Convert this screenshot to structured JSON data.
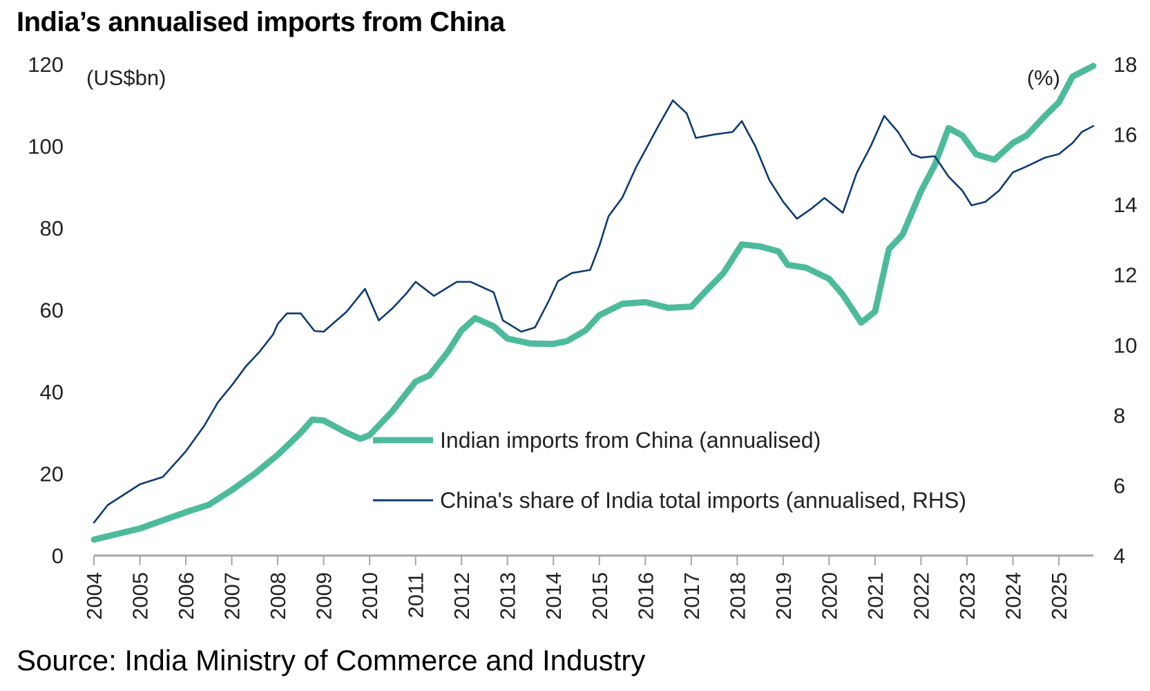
{
  "title": "India’s annualised imports from China",
  "source": "Source: India Ministry of Commerce and Industry",
  "chart_data": {
    "type": "line",
    "title": "India’s annualised imports from China",
    "left_unit": "(US$bn)",
    "right_unit": "(%)",
    "ylim_left": [
      0,
      120
    ],
    "yticks_left": [
      0,
      20,
      40,
      60,
      80,
      100,
      120
    ],
    "ylim_right": [
      4,
      18
    ],
    "yticks_right": [
      4,
      6,
      8,
      10,
      12,
      14,
      16,
      18
    ],
    "xlim": [
      2004,
      2025.75
    ],
    "xticks": [
      "2004",
      "2005",
      "2006",
      "2007",
      "2008",
      "2009",
      "2010",
      "2011",
      "2012",
      "2013",
      "2014",
      "2015",
      "2016",
      "2017",
      "2018",
      "2019",
      "2020",
      "2021",
      "2022",
      "2023",
      "2024",
      "2025"
    ],
    "grid": false,
    "legend_position": "center-right",
    "series": [
      {
        "name": "Indian imports from China (annualised)",
        "axis": "left",
        "color": "#4dbb9b",
        "points": [
          [
            2004.0,
            3.9
          ],
          [
            2005.0,
            6.6
          ],
          [
            2006.0,
            10.6
          ],
          [
            2006.5,
            12.4
          ],
          [
            2007.0,
            16
          ],
          [
            2007.5,
            20
          ],
          [
            2008.0,
            24.6
          ],
          [
            2008.5,
            30
          ],
          [
            2008.75,
            33.2
          ],
          [
            2009.0,
            33
          ],
          [
            2009.5,
            30
          ],
          [
            2009.8,
            28.5
          ],
          [
            2010.0,
            29.4
          ],
          [
            2010.5,
            35.3
          ],
          [
            2011.0,
            42.5
          ],
          [
            2011.3,
            44
          ],
          [
            2011.7,
            49.7
          ],
          [
            2012.0,
            55
          ],
          [
            2012.3,
            58
          ],
          [
            2012.7,
            56
          ],
          [
            2013.0,
            53
          ],
          [
            2013.5,
            51.8
          ],
          [
            2014.0,
            51.7
          ],
          [
            2014.3,
            52.4
          ],
          [
            2014.7,
            55
          ],
          [
            2015.0,
            58.7
          ],
          [
            2015.5,
            61.5
          ],
          [
            2016.0,
            61.9
          ],
          [
            2016.5,
            60.5
          ],
          [
            2017.0,
            60.8
          ],
          [
            2017.3,
            64.4
          ],
          [
            2017.7,
            69
          ],
          [
            2018.1,
            76
          ],
          [
            2018.5,
            75.5
          ],
          [
            2018.9,
            74.3
          ],
          [
            2019.1,
            71
          ],
          [
            2019.5,
            70.3
          ],
          [
            2020.0,
            67.6
          ],
          [
            2020.3,
            63.7
          ],
          [
            2020.7,
            56.9
          ],
          [
            2021.0,
            59.6
          ],
          [
            2021.3,
            74.8
          ],
          [
            2021.6,
            78.4
          ],
          [
            2022.0,
            89
          ],
          [
            2022.3,
            95.4
          ],
          [
            2022.6,
            104.4
          ],
          [
            2022.9,
            102.6
          ],
          [
            2023.2,
            98
          ],
          [
            2023.6,
            96.7
          ],
          [
            2024.0,
            100.8
          ],
          [
            2024.3,
            102.6
          ],
          [
            2024.7,
            107.4
          ],
          [
            2025.0,
            110.7
          ],
          [
            2025.3,
            117
          ],
          [
            2025.75,
            119.6
          ]
        ]
      },
      {
        "name": "China's share of India total imports (annualised, RHS)",
        "axis": "right",
        "color": "#0d3a73",
        "points": [
          [
            2004.0,
            4.94
          ],
          [
            2004.3,
            5.44
          ],
          [
            2005.0,
            6.03
          ],
          [
            2005.5,
            6.24
          ],
          [
            2006.0,
            6.97
          ],
          [
            2006.4,
            7.7
          ],
          [
            2006.7,
            8.37
          ],
          [
            2007.0,
            8.85
          ],
          [
            2007.3,
            9.38
          ],
          [
            2007.6,
            9.8
          ],
          [
            2007.9,
            10.3
          ],
          [
            2008.0,
            10.6
          ],
          [
            2008.2,
            10.9
          ],
          [
            2008.5,
            10.9
          ],
          [
            2008.8,
            10.4
          ],
          [
            2009.0,
            10.38
          ],
          [
            2009.5,
            10.95
          ],
          [
            2009.9,
            11.6
          ],
          [
            2010.2,
            10.7
          ],
          [
            2010.5,
            11.05
          ],
          [
            2010.8,
            11.47
          ],
          [
            2011.0,
            11.8
          ],
          [
            2011.4,
            11.4
          ],
          [
            2011.9,
            11.8
          ],
          [
            2012.2,
            11.8
          ],
          [
            2012.7,
            11.5
          ],
          [
            2012.9,
            10.7
          ],
          [
            2013.3,
            10.38
          ],
          [
            2013.6,
            10.5
          ],
          [
            2013.9,
            11.26
          ],
          [
            2014.1,
            11.82
          ],
          [
            2014.4,
            12.05
          ],
          [
            2014.8,
            12.14
          ],
          [
            2015.0,
            12.83
          ],
          [
            2015.2,
            13.67
          ],
          [
            2015.5,
            14.2
          ],
          [
            2015.8,
            15.07
          ],
          [
            2016.0,
            15.55
          ],
          [
            2016.3,
            16.28
          ],
          [
            2016.6,
            16.97
          ],
          [
            2016.9,
            16.6
          ],
          [
            2017.1,
            15.9
          ],
          [
            2017.5,
            16.0
          ],
          [
            2017.9,
            16.07
          ],
          [
            2018.1,
            16.38
          ],
          [
            2018.4,
            15.65
          ],
          [
            2018.7,
            14.7
          ],
          [
            2019.0,
            14.08
          ],
          [
            2019.3,
            13.6
          ],
          [
            2019.6,
            13.87
          ],
          [
            2019.9,
            14.19
          ],
          [
            2020.3,
            13.77
          ],
          [
            2020.6,
            14.9
          ],
          [
            2020.9,
            15.65
          ],
          [
            2021.2,
            16.53
          ],
          [
            2021.5,
            16.07
          ],
          [
            2021.8,
            15.44
          ],
          [
            2022.0,
            15.34
          ],
          [
            2022.3,
            15.38
          ],
          [
            2022.6,
            14.8
          ],
          [
            2022.9,
            14.4
          ],
          [
            2023.1,
            13.98
          ],
          [
            2023.4,
            14.08
          ],
          [
            2023.7,
            14.4
          ],
          [
            2024.0,
            14.92
          ],
          [
            2024.3,
            15.09
          ],
          [
            2024.7,
            15.34
          ],
          [
            2025.0,
            15.44
          ],
          [
            2025.3,
            15.76
          ],
          [
            2025.5,
            16.07
          ],
          [
            2025.75,
            16.24
          ]
        ]
      }
    ]
  }
}
